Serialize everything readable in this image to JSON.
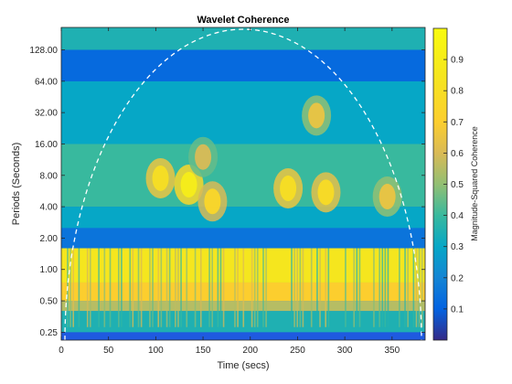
{
  "chart_data": {
    "type": "heatmap",
    "title": "Wavelet Coherence",
    "xlabel": "Time (secs)",
    "ylabel": "Periods (Seconds)",
    "colorbar_label": "Magnitude-Squared Coherence",
    "xlim": [
      0,
      385
    ],
    "ylim": [
      0.21,
      210
    ],
    "yscale": "log2",
    "xticks": [
      0,
      50,
      100,
      150,
      200,
      250,
      300,
      350
    ],
    "xtick_labels": [
      "0",
      "50",
      "100",
      "150",
      "200",
      "250",
      "300",
      "350"
    ],
    "yticks": [
      0.25,
      0.5,
      1,
      2,
      4,
      8,
      16,
      32,
      64,
      128
    ],
    "ytick_labels": [
      "0.25",
      "0.50",
      "1.00",
      "2.00",
      "4.00",
      "8.00",
      "16.00",
      "32.00",
      "64.00",
      "128.00"
    ],
    "clim": [
      0,
      1
    ],
    "cticks": [
      0.1,
      0.2,
      0.3,
      0.4,
      0.5,
      0.6,
      0.7,
      0.8,
      0.9
    ],
    "ctick_labels": [
      "0.1",
      "0.2",
      "0.3",
      "0.4",
      "0.5",
      "0.6",
      "0.7",
      "0.8",
      "0.9"
    ],
    "colormap": "parula",
    "cone_of_influence": "white dashed",
    "coherence_bands": [
      {
        "period_range": [
          0.25,
          0.4
        ],
        "level": 0.35
      },
      {
        "period_range": [
          0.4,
          0.5
        ],
        "level": 0.55
      },
      {
        "period_range": [
          0.5,
          0.75
        ],
        "level": 0.7
      },
      {
        "period_range": [
          0.75,
          1.6
        ],
        "level": 0.85
      },
      {
        "period_range": [
          1.6,
          2.5
        ],
        "level": 0.15
      },
      {
        "period_range": [
          2.5,
          4
        ],
        "level": 0.3
      },
      {
        "period_range": [
          4,
          16
        ],
        "level": 0.4
      },
      {
        "period_range": [
          16,
          64
        ],
        "level": 0.3
      },
      {
        "period_range": [
          64,
          128
        ],
        "level": 0.12
      },
      {
        "period_range": [
          128,
          210
        ],
        "level": 0.35
      }
    ],
    "hotspots": [
      {
        "time": 135,
        "period": 6.5,
        "level": 0.9
      },
      {
        "time": 105,
        "period": 7.5,
        "level": 0.8
      },
      {
        "time": 160,
        "period": 4.5,
        "level": 0.75
      },
      {
        "time": 240,
        "period": 6,
        "level": 0.8
      },
      {
        "time": 280,
        "period": 5.5,
        "level": 0.78
      },
      {
        "time": 270,
        "period": 30,
        "level": 0.65
      },
      {
        "time": 150,
        "period": 12,
        "level": 0.6
      },
      {
        "time": 345,
        "period": 5,
        "level": 0.65
      }
    ]
  }
}
